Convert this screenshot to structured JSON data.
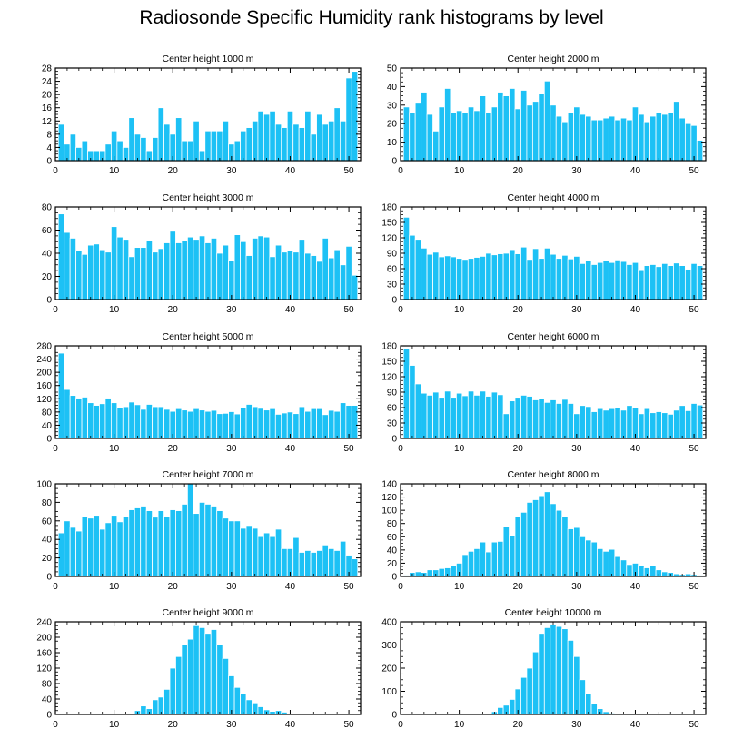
{
  "title": "Radiosonde Specific Humidity rank histograms by level",
  "colors": {
    "bar": "#1dc1f5",
    "bar_edge": "#ffffff",
    "axis": "#000000",
    "text": "#000000"
  },
  "chart_data": [
    {
      "type": "bar",
      "title": "Center height 1000 m",
      "xlabel": "",
      "ylabel": "",
      "xlim": [
        0,
        52
      ],
      "ylim": [
        0,
        28
      ],
      "xticks": [
        0,
        10,
        20,
        30,
        40,
        50
      ],
      "yticks": [
        0,
        4,
        8,
        12,
        16,
        20,
        24,
        28
      ],
      "x": [
        1,
        2,
        3,
        4,
        5,
        6,
        7,
        8,
        9,
        10,
        11,
        12,
        13,
        14,
        15,
        16,
        17,
        18,
        19,
        20,
        21,
        22,
        23,
        24,
        25,
        26,
        27,
        28,
        29,
        30,
        31,
        32,
        33,
        34,
        35,
        36,
        37,
        38,
        39,
        40,
        41,
        42,
        43,
        44,
        45,
        46,
        47,
        48,
        49,
        50,
        51
      ],
      "values": [
        11,
        5,
        8,
        4,
        6,
        3,
        3,
        3,
        5,
        9,
        6,
        4,
        13,
        8,
        7,
        3,
        7,
        16,
        11,
        8,
        13,
        6,
        6,
        12,
        3,
        9,
        9,
        9,
        12,
        5,
        6,
        9,
        10,
        12,
        15,
        14,
        15,
        11,
        10,
        15,
        11,
        10,
        15,
        8,
        14,
        11,
        12,
        16,
        12,
        25,
        27
      ]
    },
    {
      "type": "bar",
      "title": "Center height 2000 m",
      "xlabel": "",
      "ylabel": "",
      "xlim": [
        0,
        52
      ],
      "ylim": [
        0,
        50
      ],
      "xticks": [
        0,
        10,
        20,
        30,
        40,
        50
      ],
      "yticks": [
        0,
        10,
        20,
        30,
        40,
        50
      ],
      "x": [
        1,
        2,
        3,
        4,
        5,
        6,
        7,
        8,
        9,
        10,
        11,
        12,
        13,
        14,
        15,
        16,
        17,
        18,
        19,
        20,
        21,
        22,
        23,
        24,
        25,
        26,
        27,
        28,
        29,
        30,
        31,
        32,
        33,
        34,
        35,
        36,
        37,
        38,
        39,
        40,
        41,
        42,
        43,
        44,
        45,
        46,
        47,
        48,
        49,
        50,
        51
      ],
      "values": [
        29,
        26,
        31,
        37,
        25,
        16,
        29,
        39,
        26,
        27,
        26,
        29,
        27,
        35,
        26,
        29,
        37,
        35,
        39,
        28,
        38,
        30,
        32,
        36,
        43,
        30,
        24,
        21,
        26,
        29,
        25,
        24,
        22,
        22,
        23,
        24,
        22,
        23,
        22,
        29,
        25,
        21,
        24,
        26,
        25,
        26,
        32,
        23,
        20,
        19,
        11
      ]
    },
    {
      "type": "bar",
      "title": "Center height 3000 m",
      "xlabel": "",
      "ylabel": "",
      "xlim": [
        0,
        52
      ],
      "ylim": [
        0,
        80
      ],
      "xticks": [
        0,
        10,
        20,
        30,
        40,
        50
      ],
      "yticks": [
        0,
        20,
        40,
        60,
        80
      ],
      "x": [
        1,
        2,
        3,
        4,
        5,
        6,
        7,
        8,
        9,
        10,
        11,
        12,
        13,
        14,
        15,
        16,
        17,
        18,
        19,
        20,
        21,
        22,
        23,
        24,
        25,
        26,
        27,
        28,
        29,
        30,
        31,
        32,
        33,
        34,
        35,
        36,
        37,
        38,
        39,
        40,
        41,
        42,
        43,
        44,
        45,
        46,
        47,
        48,
        49,
        50,
        51
      ],
      "values": [
        74,
        58,
        53,
        42,
        39,
        47,
        48,
        43,
        41,
        63,
        54,
        52,
        37,
        45,
        45,
        51,
        41,
        44,
        49,
        59,
        49,
        51,
        54,
        52,
        55,
        49,
        53,
        40,
        47,
        34,
        56,
        50,
        38,
        53,
        55,
        54,
        37,
        47,
        41,
        42,
        41,
        52,
        40,
        38,
        33,
        53,
        36,
        43,
        30,
        46,
        21
      ]
    },
    {
      "type": "bar",
      "title": "Center height 4000 m",
      "xlabel": "",
      "ylabel": "",
      "xlim": [
        0,
        52
      ],
      "ylim": [
        0,
        180
      ],
      "xticks": [
        0,
        10,
        20,
        30,
        40,
        50
      ],
      "yticks": [
        0,
        30,
        60,
        90,
        120,
        150,
        180
      ],
      "x": [
        1,
        2,
        3,
        4,
        5,
        6,
        7,
        8,
        9,
        10,
        11,
        12,
        13,
        14,
        15,
        16,
        17,
        18,
        19,
        20,
        21,
        22,
        23,
        24,
        25,
        26,
        27,
        28,
        29,
        30,
        31,
        32,
        33,
        34,
        35,
        36,
        37,
        38,
        39,
        40,
        41,
        42,
        43,
        44,
        45,
        46,
        47,
        48,
        49,
        50,
        51
      ],
      "values": [
        160,
        125,
        117,
        100,
        88,
        92,
        83,
        85,
        83,
        80,
        78,
        80,
        82,
        84,
        90,
        87,
        89,
        90,
        97,
        89,
        102,
        78,
        99,
        80,
        100,
        88,
        80,
        86,
        79,
        84,
        70,
        75,
        68,
        72,
        76,
        72,
        77,
        74,
        68,
        72,
        58,
        66,
        68,
        64,
        70,
        66,
        71,
        66,
        59,
        70,
        66
      ]
    },
    {
      "type": "bar",
      "title": "Center height 5000 m",
      "xlabel": "",
      "ylabel": "",
      "xlim": [
        0,
        52
      ],
      "ylim": [
        0,
        280
      ],
      "xticks": [
        0,
        10,
        20,
        30,
        40,
        50
      ],
      "yticks": [
        0,
        40,
        80,
        120,
        160,
        200,
        240,
        280
      ],
      "x": [
        1,
        2,
        3,
        4,
        5,
        6,
        7,
        8,
        9,
        10,
        11,
        12,
        13,
        14,
        15,
        16,
        17,
        18,
        19,
        20,
        21,
        22,
        23,
        24,
        25,
        26,
        27,
        28,
        29,
        30,
        31,
        32,
        33,
        34,
        35,
        36,
        37,
        38,
        39,
        40,
        41,
        42,
        43,
        44,
        45,
        46,
        47,
        48,
        49,
        50,
        51
      ],
      "values": [
        258,
        148,
        130,
        122,
        125,
        108,
        100,
        105,
        122,
        108,
        92,
        96,
        110,
        102,
        88,
        103,
        96,
        96,
        88,
        82,
        90,
        86,
        82,
        90,
        86,
        82,
        85,
        75,
        76,
        81,
        74,
        92,
        103,
        96,
        91,
        86,
        90,
        73,
        77,
        80,
        75,
        96,
        82,
        90,
        90,
        72,
        85,
        82,
        108,
        100,
        100
      ]
    },
    {
      "type": "bar",
      "title": "Center height 6000 m",
      "xlabel": "",
      "ylabel": "",
      "xlim": [
        0,
        52
      ],
      "ylim": [
        0,
        180
      ],
      "xticks": [
        0,
        10,
        20,
        30,
        40,
        50
      ],
      "yticks": [
        0,
        30,
        60,
        90,
        120,
        150,
        180
      ],
      "x": [
        1,
        2,
        3,
        4,
        5,
        6,
        7,
        8,
        9,
        10,
        11,
        12,
        13,
        14,
        15,
        16,
        17,
        18,
        19,
        20,
        21,
        22,
        23,
        24,
        25,
        26,
        27,
        28,
        29,
        30,
        31,
        32,
        33,
        34,
        35,
        36,
        37,
        38,
        39,
        40,
        41,
        42,
        43,
        44,
        45,
        46,
        47,
        48,
        49,
        50,
        51
      ],
      "values": [
        174,
        142,
        106,
        88,
        84,
        90,
        80,
        92,
        80,
        88,
        83,
        92,
        84,
        92,
        82,
        90,
        85,
        48,
        73,
        80,
        84,
        82,
        75,
        78,
        70,
        75,
        68,
        76,
        68,
        48,
        64,
        62,
        52,
        58,
        55,
        58,
        60,
        55,
        64,
        60,
        48,
        58,
        50,
        52,
        50,
        47,
        55,
        64,
        54,
        68,
        65
      ]
    },
    {
      "type": "bar",
      "title": "Center height 7000 m",
      "xlabel": "",
      "ylabel": "",
      "xlim": [
        0,
        52
      ],
      "ylim": [
        0,
        100
      ],
      "xticks": [
        0,
        10,
        20,
        30,
        40,
        50
      ],
      "yticks": [
        0,
        20,
        40,
        60,
        80,
        100
      ],
      "x": [
        1,
        2,
        3,
        4,
        5,
        6,
        7,
        8,
        9,
        10,
        11,
        12,
        13,
        14,
        15,
        16,
        17,
        18,
        19,
        20,
        21,
        22,
        23,
        24,
        25,
        26,
        27,
        28,
        29,
        30,
        31,
        32,
        33,
        34,
        35,
        36,
        37,
        38,
        39,
        40,
        41,
        42,
        43,
        44,
        45,
        46,
        47,
        48,
        49,
        50,
        51
      ],
      "values": [
        47,
        60,
        53,
        49,
        65,
        63,
        66,
        51,
        58,
        66,
        59,
        65,
        72,
        74,
        76,
        71,
        64,
        71,
        65,
        72,
        71,
        78,
        100,
        68,
        80,
        78,
        76,
        71,
        63,
        60,
        60,
        52,
        55,
        52,
        43,
        47,
        43,
        51,
        30,
        30,
        42,
        26,
        28,
        26,
        28,
        34,
        30,
        28,
        38,
        23,
        19
      ]
    },
    {
      "type": "bar",
      "title": "Center height 8000 m",
      "xlabel": "",
      "ylabel": "",
      "xlim": [
        0,
        52
      ],
      "ylim": [
        0,
        140
      ],
      "xticks": [
        0,
        10,
        20,
        30,
        40,
        50
      ],
      "yticks": [
        0,
        20,
        40,
        60,
        80,
        100,
        120,
        140
      ],
      "x": [
        1,
        2,
        3,
        4,
        5,
        6,
        7,
        8,
        9,
        10,
        11,
        12,
        13,
        14,
        15,
        16,
        17,
        18,
        19,
        20,
        21,
        22,
        23,
        24,
        25,
        26,
        27,
        28,
        29,
        30,
        31,
        32,
        33,
        34,
        35,
        36,
        37,
        38,
        39,
        40,
        41,
        42,
        43,
        44,
        45,
        46,
        47,
        48,
        49,
        50,
        51
      ],
      "values": [
        2,
        6,
        7,
        6,
        10,
        10,
        12,
        13,
        17,
        20,
        33,
        38,
        42,
        52,
        37,
        52,
        53,
        75,
        62,
        90,
        97,
        112,
        116,
        122,
        128,
        110,
        100,
        90,
        72,
        74,
        60,
        55,
        52,
        42,
        38,
        41,
        30,
        25,
        18,
        20,
        17,
        13,
        17,
        10,
        7,
        6,
        4,
        3,
        4,
        3,
        2
      ]
    },
    {
      "type": "bar",
      "title": "Center height 9000 m",
      "xlabel": "",
      "ylabel": "",
      "xlim": [
        0,
        52
      ],
      "ylim": [
        0,
        240
      ],
      "xticks": [
        0,
        10,
        20,
        30,
        40,
        50
      ],
      "yticks": [
        0,
        40,
        80,
        120,
        160,
        200,
        240
      ],
      "x": [
        1,
        2,
        3,
        4,
        5,
        6,
        7,
        8,
        9,
        10,
        11,
        12,
        13,
        14,
        15,
        16,
        17,
        18,
        19,
        20,
        21,
        22,
        23,
        24,
        25,
        26,
        27,
        28,
        29,
        30,
        31,
        32,
        33,
        34,
        35,
        36,
        37,
        38,
        39,
        40,
        41,
        42,
        43,
        44,
        45,
        46,
        47,
        48,
        49,
        50,
        51
      ],
      "values": [
        0,
        0,
        0,
        0,
        0,
        0,
        0,
        1,
        2,
        1,
        1,
        2,
        3,
        10,
        22,
        15,
        38,
        45,
        65,
        120,
        150,
        180,
        195,
        230,
        225,
        210,
        220,
        180,
        145,
        100,
        70,
        55,
        38,
        30,
        20,
        12,
        8,
        10,
        6,
        3,
        2,
        1,
        1,
        1,
        1,
        0,
        1,
        0,
        0,
        0,
        0
      ]
    },
    {
      "type": "bar",
      "title": "Center height 10000 m",
      "xlabel": "",
      "ylabel": "",
      "xlim": [
        0,
        52
      ],
      "ylim": [
        0,
        400
      ],
      "xticks": [
        0,
        10,
        20,
        30,
        40,
        50
      ],
      "yticks": [
        0,
        100,
        200,
        300,
        400
      ],
      "x": [
        1,
        2,
        3,
        4,
        5,
        6,
        7,
        8,
        9,
        10,
        11,
        12,
        13,
        14,
        15,
        16,
        17,
        18,
        19,
        20,
        21,
        22,
        23,
        24,
        25,
        26,
        27,
        28,
        29,
        30,
        31,
        32,
        33,
        34,
        35,
        36,
        37,
        38,
        39,
        40,
        41,
        42,
        43,
        44,
        45,
        46,
        47,
        48,
        49,
        50,
        51
      ],
      "values": [
        0,
        0,
        0,
        0,
        0,
        0,
        0,
        0,
        0,
        0,
        0,
        0,
        2,
        3,
        5,
        12,
        30,
        40,
        65,
        110,
        160,
        200,
        270,
        350,
        375,
        390,
        380,
        370,
        320,
        250,
        150,
        90,
        45,
        25,
        12,
        6,
        3,
        2,
        1,
        1,
        0,
        0,
        1,
        0,
        0,
        0,
        0,
        0,
        0,
        0,
        0
      ]
    }
  ]
}
